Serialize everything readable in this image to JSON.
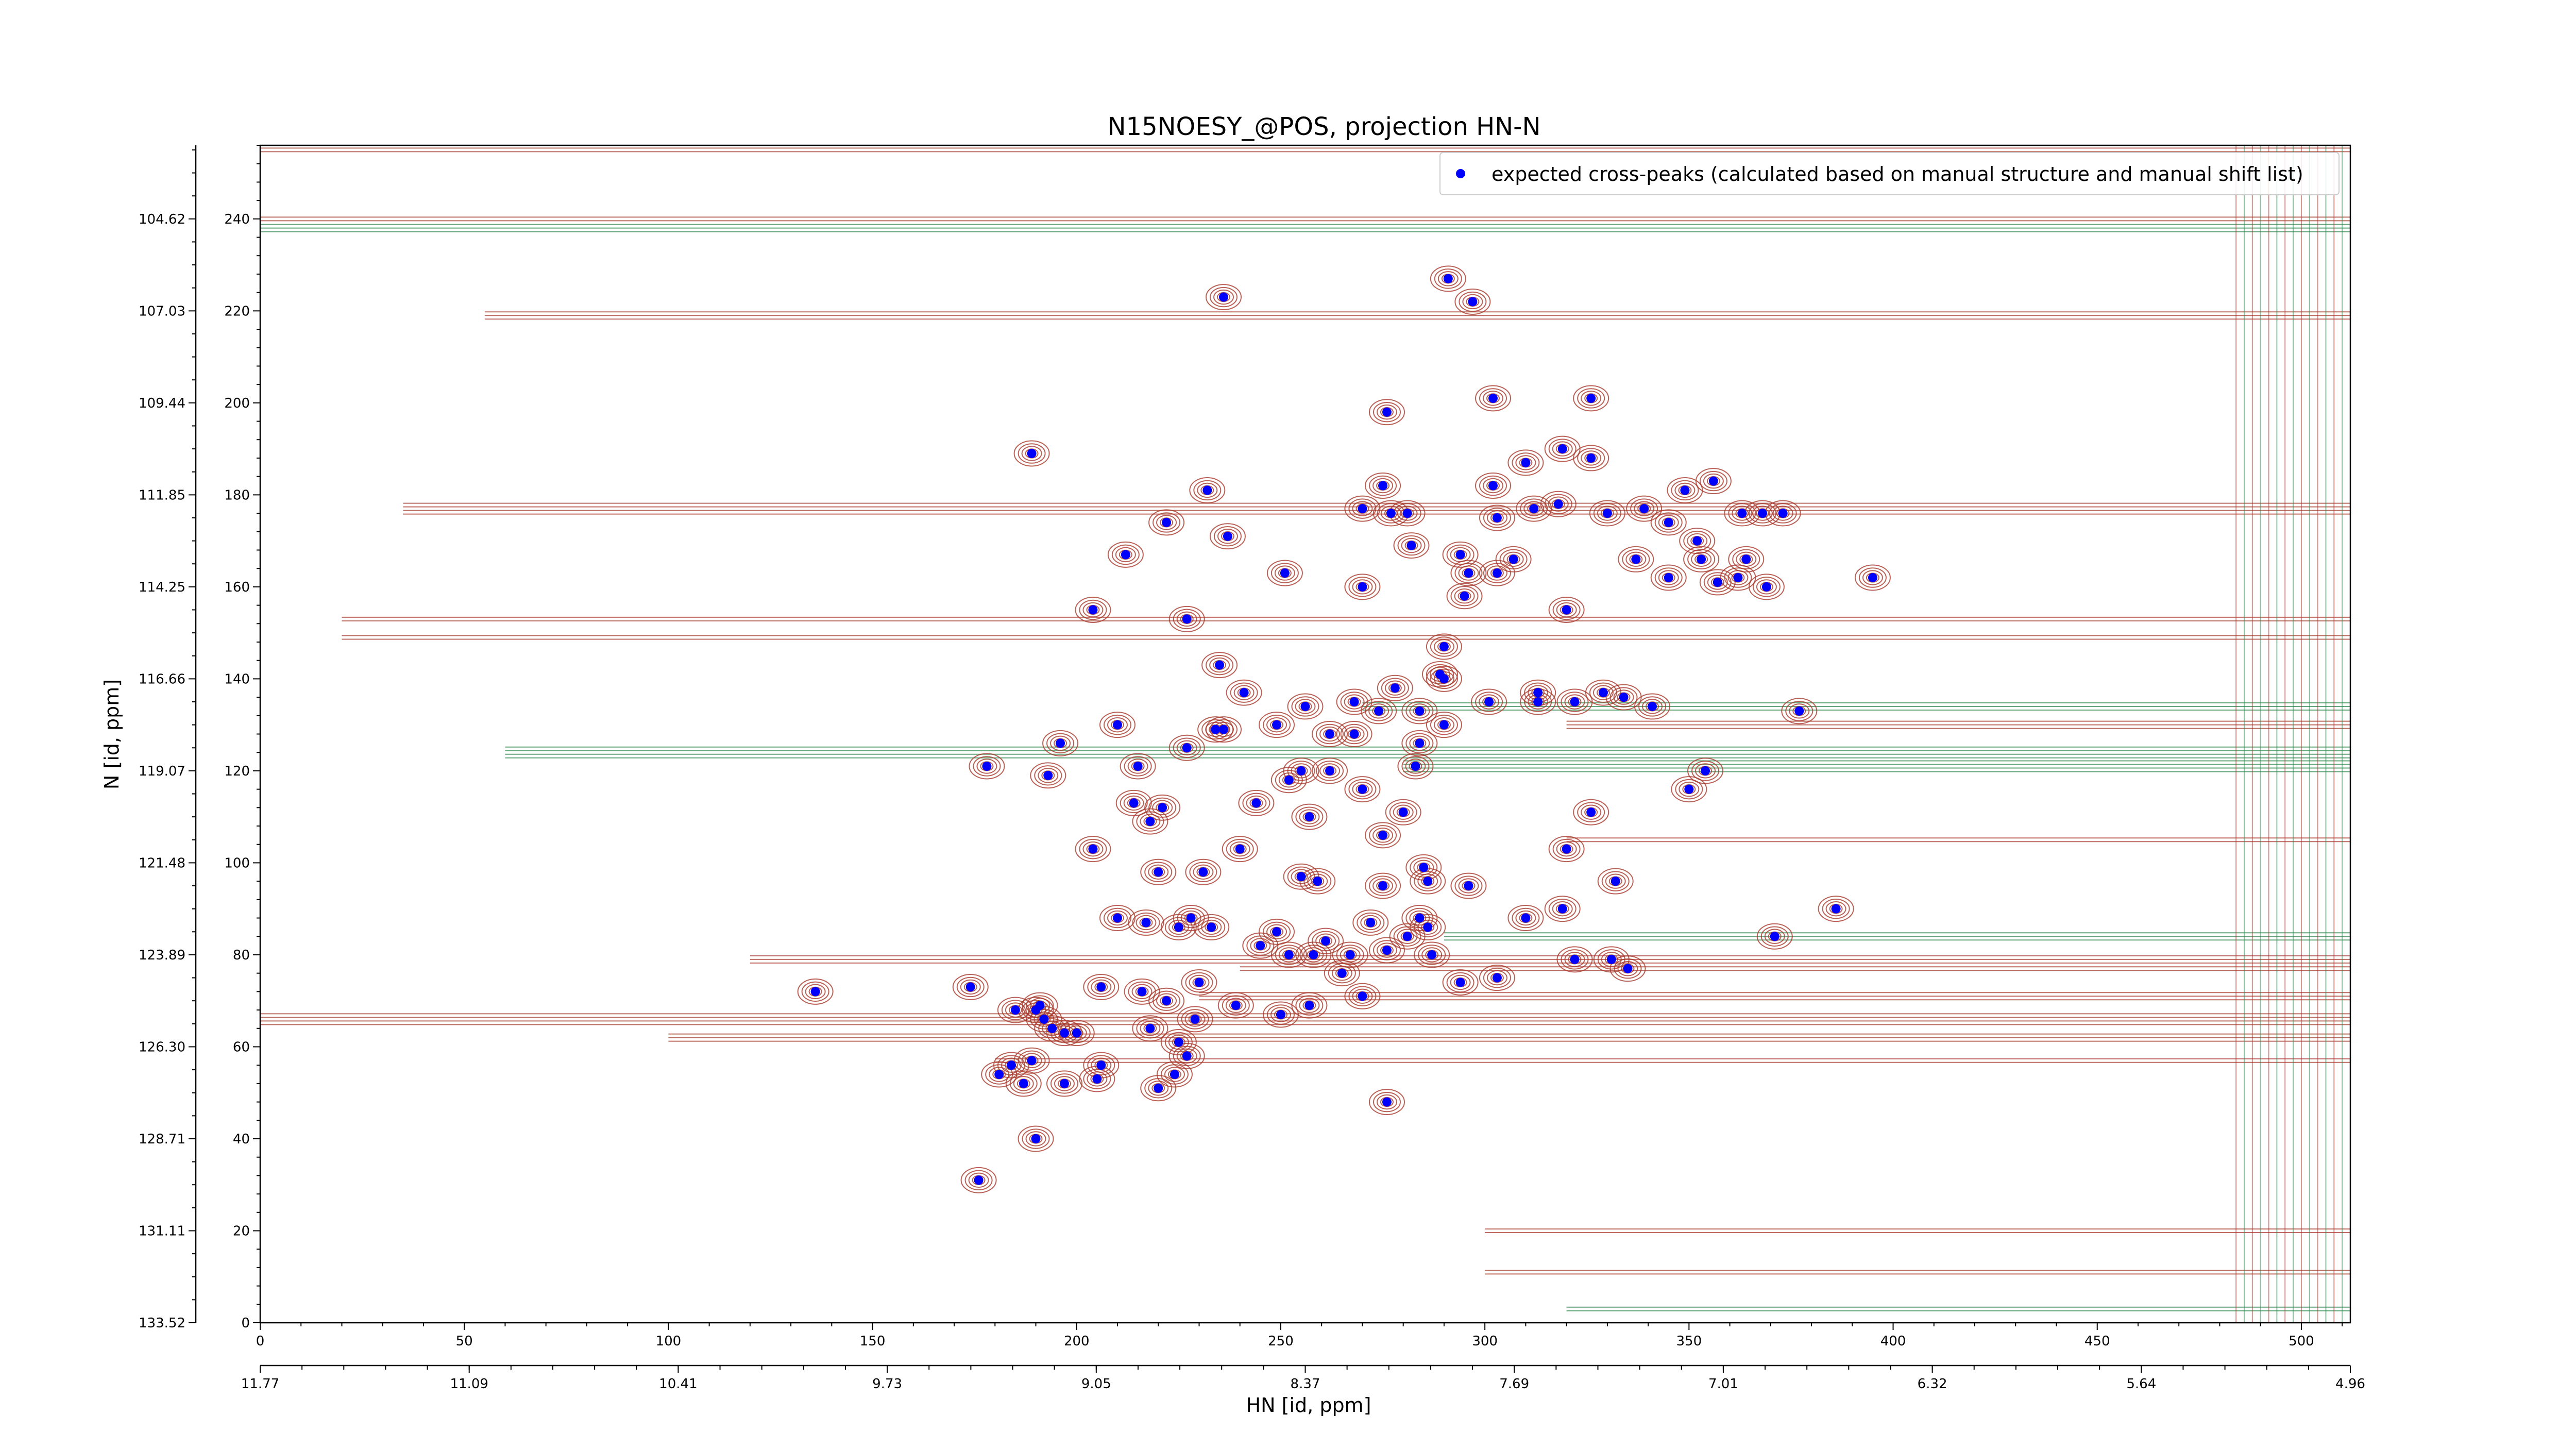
{
  "chart_data": {
    "type": "scatter",
    "title": "N15NOESY_@POS, projection HN-N",
    "xlabel": "HN [id, ppm]",
    "ylabel": "N [id, ppm]",
    "xlim": [
      0,
      512
    ],
    "ylim": [
      0,
      256
    ],
    "x_ticks": [
      0,
      50,
      100,
      150,
      200,
      250,
      300,
      350,
      400,
      450,
      500
    ],
    "y_ticks": [
      0,
      20,
      40,
      60,
      80,
      100,
      120,
      140,
      160,
      180,
      200,
      220,
      240
    ],
    "ppm_x_ticks": [
      {
        "at": 0,
        "label": "11.77"
      },
      {
        "at": 51.2,
        "label": "11.09"
      },
      {
        "at": 102.4,
        "label": "10.41"
      },
      {
        "at": 153.6,
        "label": "9.73"
      },
      {
        "at": 204.8,
        "label": "9.05"
      },
      {
        "at": 256,
        "label": "8.37"
      },
      {
        "at": 307.2,
        "label": "7.69"
      },
      {
        "at": 358.4,
        "label": "7.01"
      },
      {
        "at": 409.6,
        "label": "6.32"
      },
      {
        "at": 460.8,
        "label": "5.64"
      },
      {
        "at": 512,
        "label": "4.96"
      }
    ],
    "ppm_y_ticks": [
      {
        "at": 0,
        "label": "133.52"
      },
      {
        "at": 20,
        "label": "131.11"
      },
      {
        "at": 40,
        "label": "128.71"
      },
      {
        "at": 60,
        "label": "126.30"
      },
      {
        "at": 80,
        "label": "123.89"
      },
      {
        "at": 100,
        "label": "121.48"
      },
      {
        "at": 120,
        "label": "119.07"
      },
      {
        "at": 140,
        "label": "116.66"
      },
      {
        "at": 160,
        "label": "114.25"
      },
      {
        "at": 180,
        "label": "111.85"
      },
      {
        "at": 200,
        "label": "109.44"
      },
      {
        "at": 220,
        "label": "107.03"
      },
      {
        "at": 240,
        "label": "104.62"
      }
    ],
    "legend": {
      "placement": "top-right",
      "label": "expected cross-peaks (calculated based on manual structure and manual shift list)"
    },
    "colors": {
      "marker": "#0000ff",
      "positive_contours": "#a83a2c",
      "negative_contours": "#2f8a4e"
    },
    "series": [
      {
        "name": "expected cross-peaks (calculated based on manual structure and manual shift list)",
        "points": [
          [
            236,
            223
          ],
          [
            291,
            227
          ],
          [
            297,
            222
          ],
          [
            189,
            189
          ],
          [
            276,
            198
          ],
          [
            302,
            201
          ],
          [
            326,
            201
          ],
          [
            232,
            181
          ],
          [
            275,
            182
          ],
          [
            222,
            174
          ],
          [
            237,
            171
          ],
          [
            212,
            167
          ],
          [
            277,
            176
          ],
          [
            270,
            177
          ],
          [
            281,
            176
          ],
          [
            302,
            182
          ],
          [
            310,
            187
          ],
          [
            319,
            190
          ],
          [
            326,
            188
          ],
          [
            312,
            177
          ],
          [
            318,
            178
          ],
          [
            330,
            176
          ],
          [
            349,
            181
          ],
          [
            339,
            177
          ],
          [
            345,
            174
          ],
          [
            356,
            183
          ],
          [
            363,
            176
          ],
          [
            368,
            176
          ],
          [
            373,
            176
          ],
          [
            303,
            175
          ],
          [
            282,
            169
          ],
          [
            294,
            167
          ],
          [
            307,
            166
          ],
          [
            303,
            163
          ],
          [
            296,
            163
          ],
          [
            295,
            158
          ],
          [
            270,
            160
          ],
          [
            251,
            163
          ],
          [
            227,
            153
          ],
          [
            204,
            155
          ],
          [
            320,
            155
          ],
          [
            353,
            166
          ],
          [
            364,
            166
          ],
          [
            352,
            170
          ],
          [
            357,
            161
          ],
          [
            362,
            162
          ],
          [
            345,
            162
          ],
          [
            337,
            166
          ],
          [
            395,
            162
          ],
          [
            369,
            160
          ],
          [
            290,
            147
          ],
          [
            289,
            141
          ],
          [
            278,
            138
          ],
          [
            290,
            140
          ],
          [
            235,
            143
          ],
          [
            241,
            137
          ],
          [
            256,
            134
          ],
          [
            268,
            135
          ],
          [
            274,
            133
          ],
          [
            284,
            133
          ],
          [
            290,
            130
          ],
          [
            301,
            135
          ],
          [
            313,
            137
          ],
          [
            313,
            135
          ],
          [
            322,
            135
          ],
          [
            329,
            137
          ],
          [
            334,
            136
          ],
          [
            341,
            134
          ],
          [
            377,
            133
          ],
          [
            210,
            130
          ],
          [
            236,
            129
          ],
          [
            234,
            129
          ],
          [
            227,
            125
          ],
          [
            249,
            130
          ],
          [
            262,
            128
          ],
          [
            268,
            128
          ],
          [
            284,
            126
          ],
          [
            283,
            121
          ],
          [
            178,
            121
          ],
          [
            193,
            119
          ],
          [
            196,
            126
          ],
          [
            215,
            121
          ],
          [
            214,
            113
          ],
          [
            221,
            112
          ],
          [
            218,
            109
          ],
          [
            244,
            113
          ],
          [
            252,
            118
          ],
          [
            255,
            120
          ],
          [
            262,
            120
          ],
          [
            270,
            116
          ],
          [
            257,
            110
          ],
          [
            280,
            111
          ],
          [
            275,
            106
          ],
          [
            326,
            111
          ],
          [
            350,
            116
          ],
          [
            354,
            120
          ],
          [
            320,
            103
          ],
          [
            204,
            103
          ],
          [
            240,
            103
          ],
          [
            231,
            98
          ],
          [
            220,
            98
          ],
          [
            255,
            97
          ],
          [
            259,
            96
          ],
          [
            275,
            95
          ],
          [
            285,
            99
          ],
          [
            286,
            96
          ],
          [
            296,
            95
          ],
          [
            310,
            88
          ],
          [
            319,
            90
          ],
          [
            332,
            96
          ],
          [
            210,
            88
          ],
          [
            217,
            87
          ],
          [
            225,
            86
          ],
          [
            228,
            88
          ],
          [
            233,
            86
          ],
          [
            245,
            82
          ],
          [
            249,
            85
          ],
          [
            261,
            83
          ],
          [
            252,
            80
          ],
          [
            258,
            80
          ],
          [
            267,
            80
          ],
          [
            272,
            87
          ],
          [
            276,
            81
          ],
          [
            281,
            84
          ],
          [
            286,
            86
          ],
          [
            265,
            76
          ],
          [
            270,
            71
          ],
          [
            250,
            67
          ],
          [
            284,
            88
          ],
          [
            287,
            80
          ],
          [
            294,
            74
          ],
          [
            303,
            75
          ],
          [
            322,
            79
          ],
          [
            331,
            79
          ],
          [
            335,
            77
          ],
          [
            371,
            84
          ],
          [
            386,
            90
          ],
          [
            136,
            72
          ],
          [
            174,
            73
          ],
          [
            185,
            68
          ],
          [
            190,
            68
          ],
          [
            191,
            69
          ],
          [
            192,
            66
          ],
          [
            194,
            64
          ],
          [
            197,
            63
          ],
          [
            200,
            63
          ],
          [
            206,
            73
          ],
          [
            216,
            72
          ],
          [
            222,
            70
          ],
          [
            230,
            74
          ],
          [
            218,
            64
          ],
          [
            229,
            66
          ],
          [
            239,
            69
          ],
          [
            225,
            61
          ],
          [
            227,
            58
          ],
          [
            220,
            51
          ],
          [
            224,
            54
          ],
          [
            257,
            69
          ],
          [
            187,
            52
          ],
          [
            181,
            54
          ],
          [
            184,
            56
          ],
          [
            189,
            57
          ],
          [
            197,
            52
          ],
          [
            205,
            53
          ],
          [
            206,
            56
          ],
          [
            276,
            48
          ],
          [
            190,
            40
          ],
          [
            176,
            31
          ]
        ]
      }
    ]
  }
}
